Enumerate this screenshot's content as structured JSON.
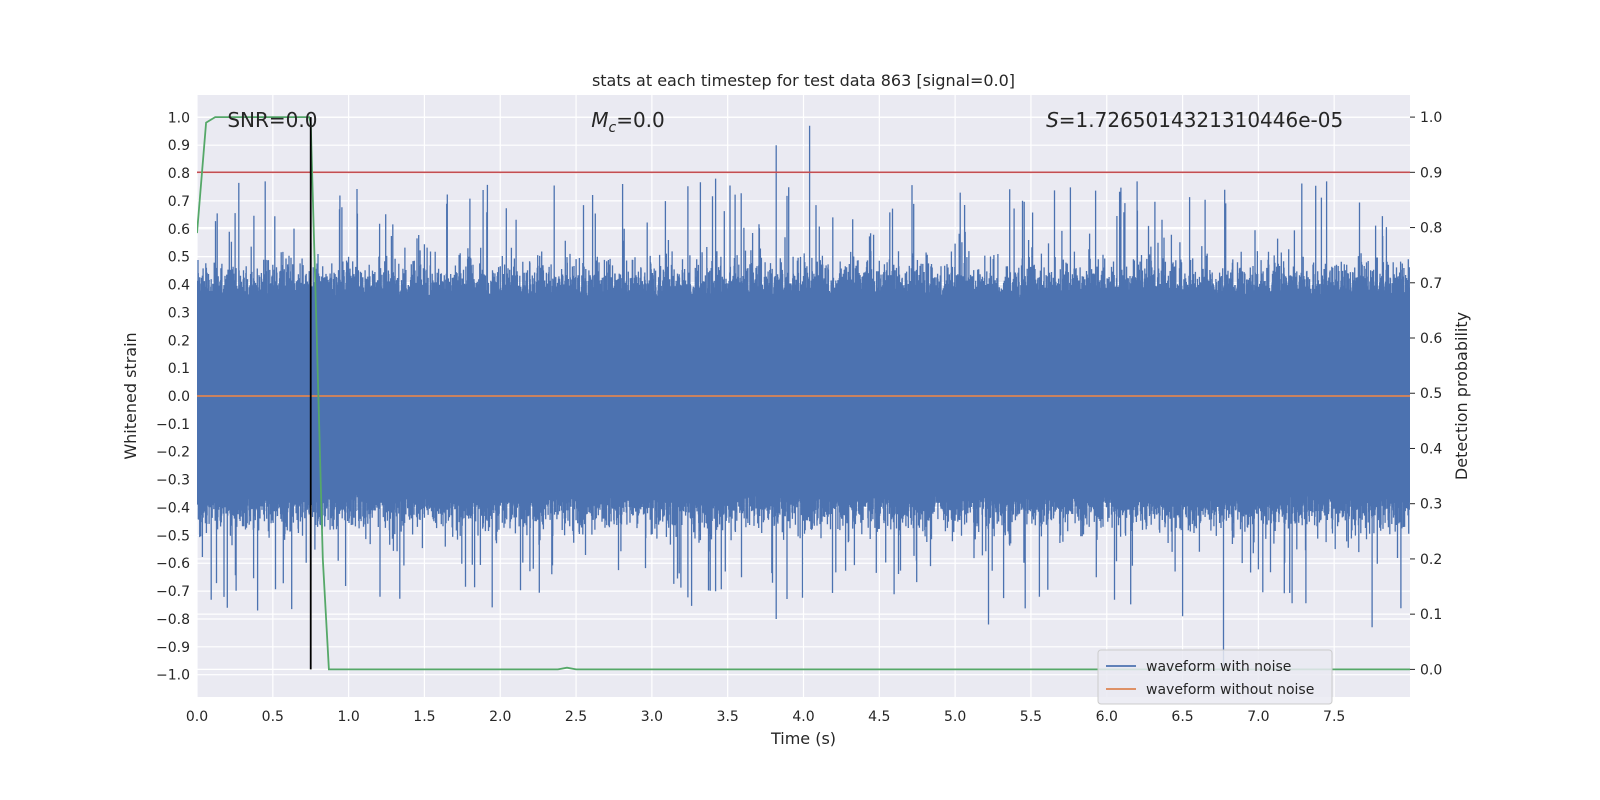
{
  "chart_data": {
    "type": "line",
    "title": "stats at each timestep for test data 863 [signal=0.0]",
    "xlabel": "Time (s)",
    "ylabel": "Whitened strain",
    "y2label": "Detection probability",
    "xlim": [
      0.0,
      8.0
    ],
    "ylim": [
      -1.08,
      1.08
    ],
    "y2lim": [
      -0.05,
      1.04
    ],
    "x_ticks": [
      0.0,
      0.5,
      1.0,
      1.5,
      2.0,
      2.5,
      3.0,
      3.5,
      4.0,
      4.5,
      5.0,
      5.5,
      6.0,
      6.5,
      7.0,
      7.5
    ],
    "y_ticks": [
      -1.0,
      -0.9,
      -0.8,
      -0.7,
      -0.6,
      -0.5,
      -0.4,
      -0.3,
      -0.2,
      -0.1,
      0.0,
      0.1,
      0.2,
      0.3,
      0.4,
      0.5,
      0.6,
      0.7,
      0.8,
      0.9,
      1.0
    ],
    "y2_ticks": [
      0.0,
      0.1,
      0.2,
      0.3,
      0.4,
      0.5,
      0.6,
      0.7,
      0.8,
      0.9,
      1.0
    ],
    "annotations": {
      "snr": "SNR=0.0",
      "mc_symbol": "M",
      "mc_sub": "c",
      "mc_value": "=0.0",
      "s_symbol": "S",
      "s_value": "=1.7265014321310446e-05"
    },
    "series": [
      {
        "name": "waveform with noise",
        "axis": "left",
        "color": "#4c72b0",
        "typical_abs_max": 0.45,
        "peaks": [
          {
            "x": 0.45,
            "y": 0.77
          },
          {
            "x": 3.42,
            "y": 0.78
          },
          {
            "x": 3.82,
            "y": 0.9
          },
          {
            "x": 4.04,
            "y": 0.97
          },
          {
            "x": 6.2,
            "y": 0.77
          },
          {
            "x": 7.45,
            "y": 0.77
          },
          {
            "x": 6.77,
            "y": -0.97
          },
          {
            "x": 3.82,
            "y": -0.8
          },
          {
            "x": 5.22,
            "y": -0.82
          },
          {
            "x": 7.75,
            "y": -0.83
          },
          {
            "x": 6.5,
            "y": -0.79
          },
          {
            "x": 0.2,
            "y": -0.76
          }
        ]
      },
      {
        "name": "waveform without noise",
        "axis": "left",
        "color": "#dd8452",
        "x": [
          0.0,
          8.0
        ],
        "y": [
          0.0,
          0.0
        ]
      },
      {
        "name": "detection probability",
        "axis": "right",
        "color": "#55a868",
        "x": [
          0.0,
          0.06,
          0.12,
          0.2,
          0.4,
          0.6,
          0.74,
          0.75,
          0.79,
          0.83,
          0.87,
          1.0,
          2.0,
          2.38,
          2.44,
          2.5,
          3.0,
          8.0
        ],
        "y": [
          0.79,
          0.99,
          1.0,
          1.0,
          1.0,
          1.0,
          1.0,
          0.99,
          0.6,
          0.2,
          0.0,
          0.0,
          0.0,
          0.0,
          0.003,
          0.0,
          0.0,
          0.0
        ]
      },
      {
        "name": "threshold",
        "axis": "right",
        "color": "#c44e52",
        "x": [
          0.0,
          8.0
        ],
        "y": [
          0.9,
          0.9
        ]
      },
      {
        "name": "detection time",
        "axis": "right",
        "color": "#000000",
        "x": [
          0.75,
          0.75
        ],
        "y": [
          0.0,
          1.0
        ]
      }
    ],
    "legend": {
      "position": "lower-right",
      "entries": [
        "waveform with noise",
        "waveform without noise"
      ]
    },
    "grid": true
  }
}
